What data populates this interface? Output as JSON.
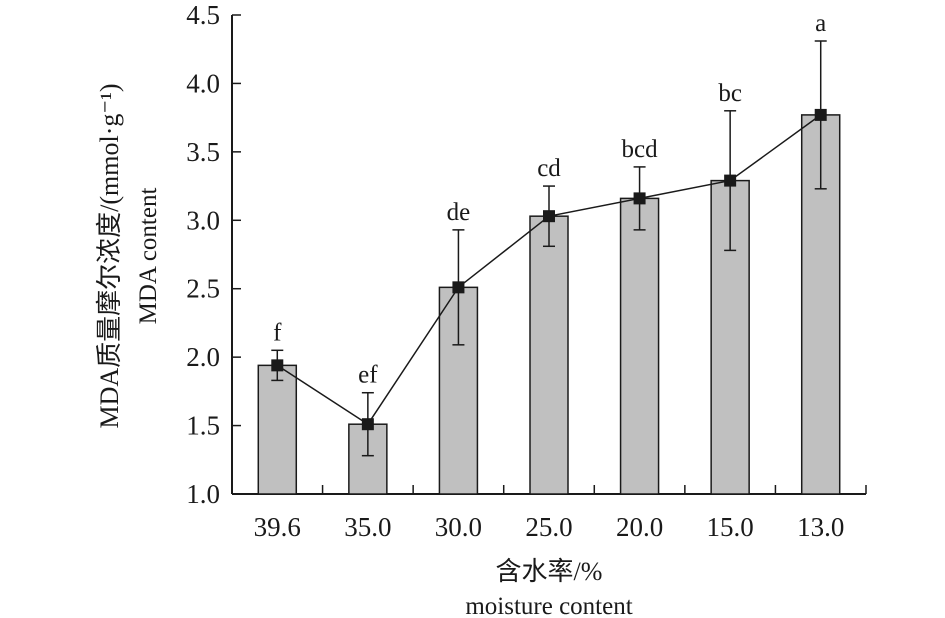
{
  "chart_data": {
    "type": "bar",
    "categories": [
      "39.6",
      "35.0",
      "30.0",
      "25.0",
      "20.0",
      "15.0",
      "13.0"
    ],
    "series": [
      {
        "values": [
          1.94,
          1.51,
          2.51,
          3.03,
          3.16,
          3.29,
          3.77
        ],
        "error": [
          0.11,
          0.23,
          0.42,
          0.22,
          0.23,
          0.51,
          0.54
        ],
        "significance": [
          "f",
          "ef",
          "de",
          "cd",
          "bcd",
          "bc",
          "a"
        ]
      }
    ],
    "overlay": "line-with-square-markers",
    "ylim": [
      1.0,
      4.5
    ],
    "yticks": [
      "1.0",
      "1.5",
      "2.0",
      "2.5",
      "3.0",
      "3.5",
      "4.0",
      "4.5"
    ],
    "xlabel": "含水率/%",
    "xlabel_en": "moisture content",
    "ylabel": "MDA质量摩尔浓度/(mmol·g⁻¹)",
    "ylabel_en": "MDA content",
    "grid": false,
    "colors": {
      "bar_fill": "#c0c0c0",
      "stroke": "#1a1a1a"
    }
  }
}
